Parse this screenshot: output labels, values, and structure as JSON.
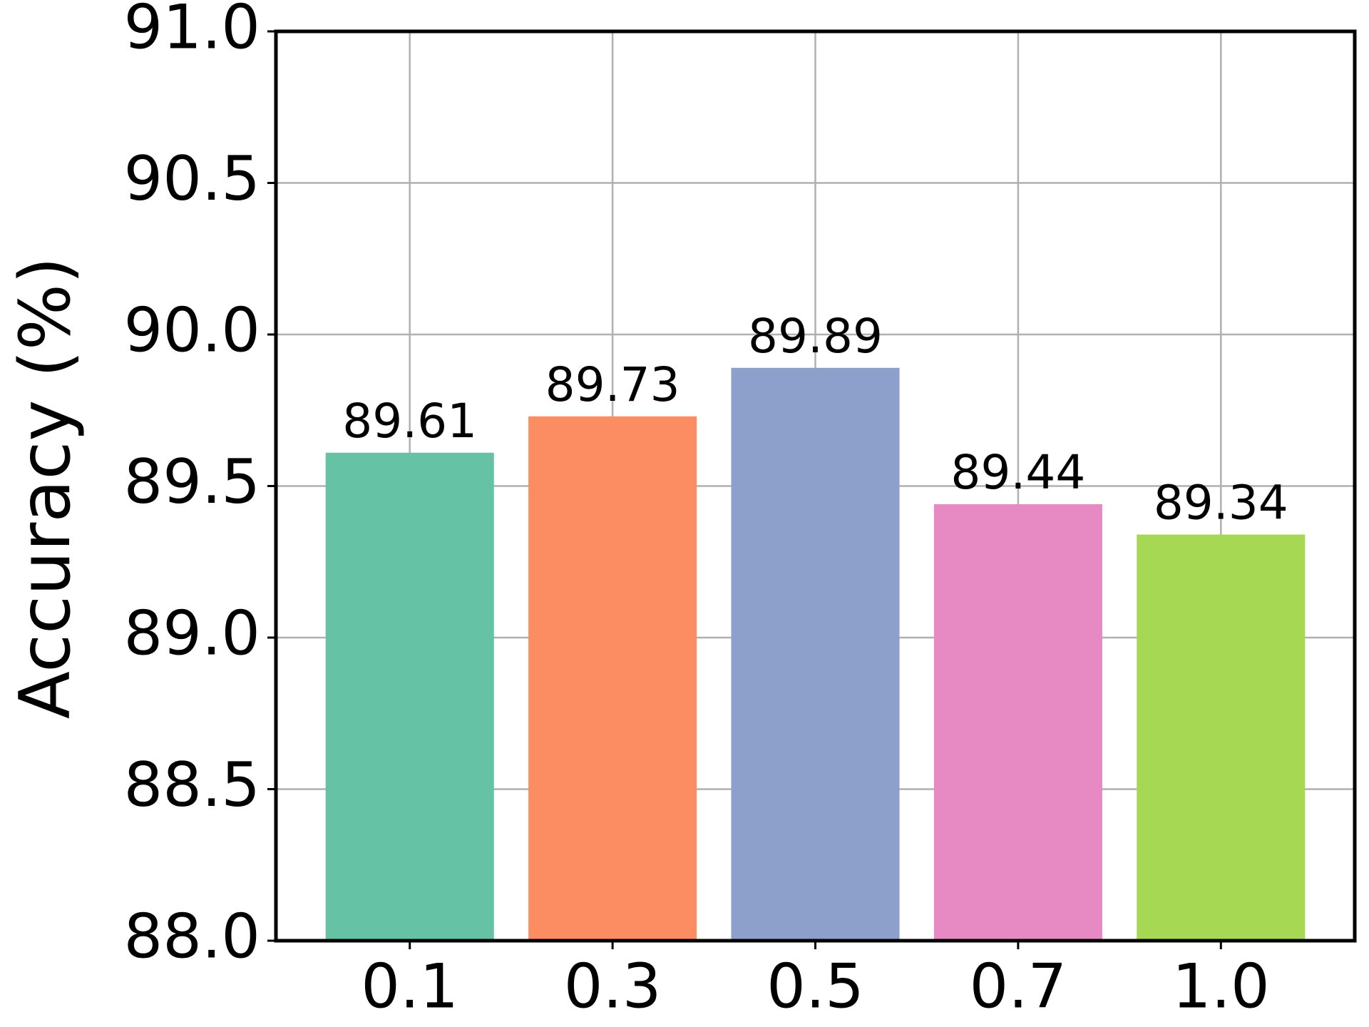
{
  "chart_data": {
    "type": "bar",
    "y_label": "Accuracy (%)",
    "categories": [
      "0.1",
      "0.3",
      "0.5",
      "0.7",
      "1.0"
    ],
    "values": [
      89.61,
      89.73,
      89.89,
      89.44,
      89.34
    ],
    "colors": [
      "#66c2a5",
      "#fc8d62",
      "#8da0cb",
      "#e78ac3",
      "#a6d854"
    ],
    "ylim": [
      88,
      91
    ],
    "yticks": [
      {
        "value": 88,
        "label": "88.0"
      },
      88.5,
      {
        "value": 89,
        "label": "89.0"
      },
      89.5,
      {
        "value": 90,
        "label": "90.0"
      },
      90.5,
      {
        "value": 91,
        "label": "91.0"
      }
    ],
    "grid": true
  }
}
